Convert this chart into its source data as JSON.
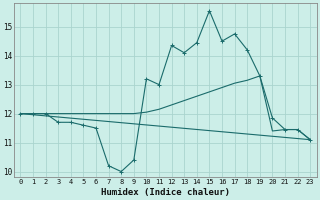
{
  "xlabel": "Humidex (Indice chaleur)",
  "bg_color": "#cceee8",
  "grid_color": "#aad4ce",
  "line_color": "#1a6b6b",
  "xlim": [
    -0.5,
    23.5
  ],
  "ylim": [
    9.8,
    15.8
  ],
  "yticks": [
    10,
    11,
    12,
    13,
    14,
    15
  ],
  "xticks": [
    0,
    1,
    2,
    3,
    4,
    5,
    6,
    7,
    8,
    9,
    10,
    11,
    12,
    13,
    14,
    15,
    16,
    17,
    18,
    19,
    20,
    21,
    22,
    23
  ],
  "line1_x": [
    0,
    1,
    2,
    3,
    4,
    5,
    6,
    7,
    8,
    9,
    10,
    11,
    12,
    13,
    14,
    15,
    16,
    17,
    18,
    19,
    20,
    21,
    22,
    23
  ],
  "line1_y": [
    12.0,
    12.0,
    12.0,
    11.7,
    11.7,
    11.6,
    11.5,
    10.2,
    10.0,
    10.4,
    13.2,
    13.0,
    14.35,
    14.1,
    14.45,
    15.55,
    14.5,
    14.75,
    14.2,
    13.3,
    11.85,
    11.45,
    11.45,
    11.1
  ],
  "line2_x": [
    0,
    1,
    2,
    3,
    4,
    5,
    6,
    7,
    8,
    9,
    10,
    11,
    12,
    13,
    14,
    15,
    16,
    17,
    18,
    19,
    20,
    21,
    22,
    23
  ],
  "line2_y": [
    12.0,
    12.0,
    12.0,
    12.0,
    12.0,
    12.0,
    12.0,
    12.0,
    12.0,
    12.0,
    12.05,
    12.15,
    12.3,
    12.45,
    12.6,
    12.75,
    12.9,
    13.05,
    13.15,
    13.3,
    11.4,
    11.45,
    11.45,
    11.1
  ],
  "line3_x": [
    0,
    23
  ],
  "line3_y": [
    12.0,
    11.1
  ]
}
